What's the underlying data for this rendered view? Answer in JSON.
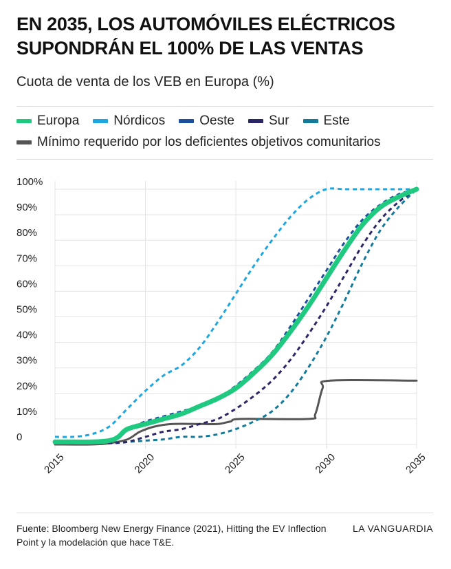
{
  "header": {
    "title": "EN 2035, LOS AUTOMÓVILES ELÉCTRICOS SUPONDRÁN EL 100% DE LAS VENTAS",
    "subtitle": "Cuota de venta de los VEB en Europa (%)"
  },
  "footer": {
    "source": "Fuente: Bloomberg New Energy Finance (2021), Hitting the EV Inflection Point y la modelación que hace T&E.",
    "brand": "LA VANGUARDIA"
  },
  "chart_data": {
    "type": "line",
    "xlim": [
      2015,
      2035
    ],
    "ylim": [
      0,
      100
    ],
    "x_ticks": [
      2015,
      2020,
      2025,
      2030,
      2035
    ],
    "y_ticks": [
      0,
      10,
      20,
      30,
      40,
      50,
      60,
      70,
      80,
      90,
      100
    ],
    "y_tick_labels": [
      "0",
      "10%",
      "20%",
      "30%",
      "40%",
      "50%",
      "60%",
      "70%",
      "80%",
      "90%",
      "100%"
    ],
    "grid": "vertical and horizontal",
    "legend_placement": "top",
    "series": [
      {
        "name": "Europa",
        "color": "#1fc97f",
        "style": "solid-thick",
        "points": [
          [
            2015,
            1
          ],
          [
            2016,
            1
          ],
          [
            2017,
            1
          ],
          [
            2018,
            1.5
          ],
          [
            2018.5,
            3
          ],
          [
            2019,
            6
          ],
          [
            2020,
            8
          ],
          [
            2021,
            10
          ],
          [
            2022,
            12
          ],
          [
            2023,
            15
          ],
          [
            2024,
            18
          ],
          [
            2025,
            22
          ],
          [
            2026,
            28
          ],
          [
            2027,
            35
          ],
          [
            2028,
            44
          ],
          [
            2029,
            54
          ],
          [
            2030,
            65
          ],
          [
            2031,
            76
          ],
          [
            2032,
            86
          ],
          [
            2033,
            93
          ],
          [
            2034,
            97
          ],
          [
            2035,
            100
          ]
        ]
      },
      {
        "name": "Nórdicos",
        "color": "#1da7e0",
        "style": "dashed",
        "points": [
          [
            2015,
            3
          ],
          [
            2016,
            3
          ],
          [
            2017,
            4
          ],
          [
            2018,
            7
          ],
          [
            2019,
            14
          ],
          [
            2020,
            21
          ],
          [
            2021,
            27
          ],
          [
            2022,
            31
          ],
          [
            2023,
            38
          ],
          [
            2024,
            48
          ],
          [
            2025,
            59
          ],
          [
            2026,
            70
          ],
          [
            2027,
            80
          ],
          [
            2028,
            89
          ],
          [
            2029,
            96
          ],
          [
            2030,
            100
          ],
          [
            2031,
            100
          ],
          [
            2032,
            100
          ],
          [
            2033,
            100
          ],
          [
            2034,
            100
          ],
          [
            2035,
            100
          ]
        ]
      },
      {
        "name": "Oeste",
        "color": "#1d4f9c",
        "style": "dashed",
        "points": [
          [
            2015,
            1
          ],
          [
            2016,
            1
          ],
          [
            2017,
            1
          ],
          [
            2018,
            1.5
          ],
          [
            2018.5,
            3
          ],
          [
            2019,
            6
          ],
          [
            2020,
            9
          ],
          [
            2021,
            11
          ],
          [
            2022,
            13
          ],
          [
            2023,
            15
          ],
          [
            2024,
            18
          ],
          [
            2025,
            23
          ],
          [
            2026,
            29
          ],
          [
            2027,
            36
          ],
          [
            2028,
            46
          ],
          [
            2029,
            57
          ],
          [
            2030,
            68
          ],
          [
            2031,
            79
          ],
          [
            2032,
            88
          ],
          [
            2033,
            94
          ],
          [
            2034,
            98
          ],
          [
            2035,
            100
          ]
        ]
      },
      {
        "name": "Sur",
        "color": "#2b2766",
        "style": "dashed",
        "points": [
          [
            2015,
            0.5
          ],
          [
            2016,
            0.5
          ],
          [
            2017,
            0.5
          ],
          [
            2018,
            0.5
          ],
          [
            2019,
            1
          ],
          [
            2020,
            3
          ],
          [
            2021,
            5
          ],
          [
            2022,
            6
          ],
          [
            2023,
            8
          ],
          [
            2024,
            10
          ],
          [
            2025,
            14
          ],
          [
            2026,
            19
          ],
          [
            2027,
            25
          ],
          [
            2028,
            33
          ],
          [
            2029,
            43
          ],
          [
            2030,
            54
          ],
          [
            2031,
            66
          ],
          [
            2032,
            78
          ],
          [
            2033,
            88
          ],
          [
            2034,
            95
          ],
          [
            2035,
            100
          ]
        ]
      },
      {
        "name": "Este",
        "color": "#147a9a",
        "style": "dashed",
        "points": [
          [
            2015,
            0.5
          ],
          [
            2016,
            0.5
          ],
          [
            2017,
            0.5
          ],
          [
            2018,
            0.5
          ],
          [
            2019,
            1
          ],
          [
            2020,
            1.5
          ],
          [
            2021,
            2
          ],
          [
            2022,
            3
          ],
          [
            2023,
            3
          ],
          [
            2024,
            4
          ],
          [
            2025,
            6
          ],
          [
            2026,
            9
          ],
          [
            2027,
            13
          ],
          [
            2028,
            20
          ],
          [
            2029,
            30
          ],
          [
            2030,
            42
          ],
          [
            2031,
            56
          ],
          [
            2032,
            71
          ],
          [
            2033,
            84
          ],
          [
            2034,
            93
          ],
          [
            2035,
            100
          ]
        ]
      },
      {
        "name": "Mínimo requerido por los deficientes objetivos comunitarios",
        "color": "#555555",
        "style": "solid",
        "points": [
          [
            2015,
            0
          ],
          [
            2017,
            0
          ],
          [
            2018,
            0.5
          ],
          [
            2019,
            2
          ],
          [
            2019.7,
            5
          ],
          [
            2020.5,
            7
          ],
          [
            2021.5,
            8
          ],
          [
            2023,
            8
          ],
          [
            2024,
            8
          ],
          [
            2024.7,
            9
          ],
          [
            2025.3,
            10
          ],
          [
            2029,
            10
          ],
          [
            2029.4,
            12
          ],
          [
            2029.8,
            22
          ],
          [
            2030.2,
            25
          ],
          [
            2035,
            25
          ]
        ]
      }
    ]
  }
}
